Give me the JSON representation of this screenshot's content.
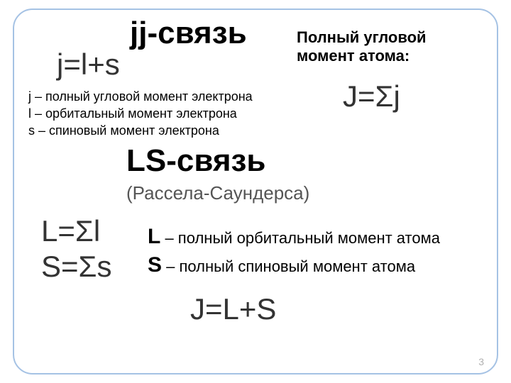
{
  "frame": {
    "border_color": "#a5c2e4",
    "radius": 28
  },
  "jj": {
    "title": "jj-связь",
    "formula": "j=l+s",
    "j_def": "j – полный угловой момент электрона",
    "l_def": "l – орбитальный момент электрона",
    "s_def": "s – спиновый момент электрона"
  },
  "atom": {
    "title_line1": "Полный угловой",
    "title_line2": "момент атома:",
    "formula_prefix": "J=",
    "formula_sigma": "Σ",
    "formula_suffix": "j"
  },
  "ls": {
    "title": "LS-связь",
    "sub": "(Рассела-Саундерса)",
    "L_prefix": "L=",
    "L_sigma": "Σ",
    "L_suffix": "l",
    "S_prefix": "S=",
    "S_sigma": "Σ",
    "S_suffix": "s",
    "L_big": "L",
    "L_desc": " – полный орбитальный момент атома",
    "S_big": "S",
    "S_desc": " – полный спиновый момент атома",
    "final": "J=L+S"
  },
  "slide_number": "3",
  "colors": {
    "text_main": "#000000",
    "text_formula": "#333333",
    "text_sub": "#555555",
    "text_num": "#b0b0b0",
    "bg": "#ffffff"
  },
  "fonts": {
    "title_size": 44,
    "formula_size": 42,
    "body_size": 18,
    "right_title_size": 22,
    "sub_size": 26,
    "desc_size": 22
  }
}
